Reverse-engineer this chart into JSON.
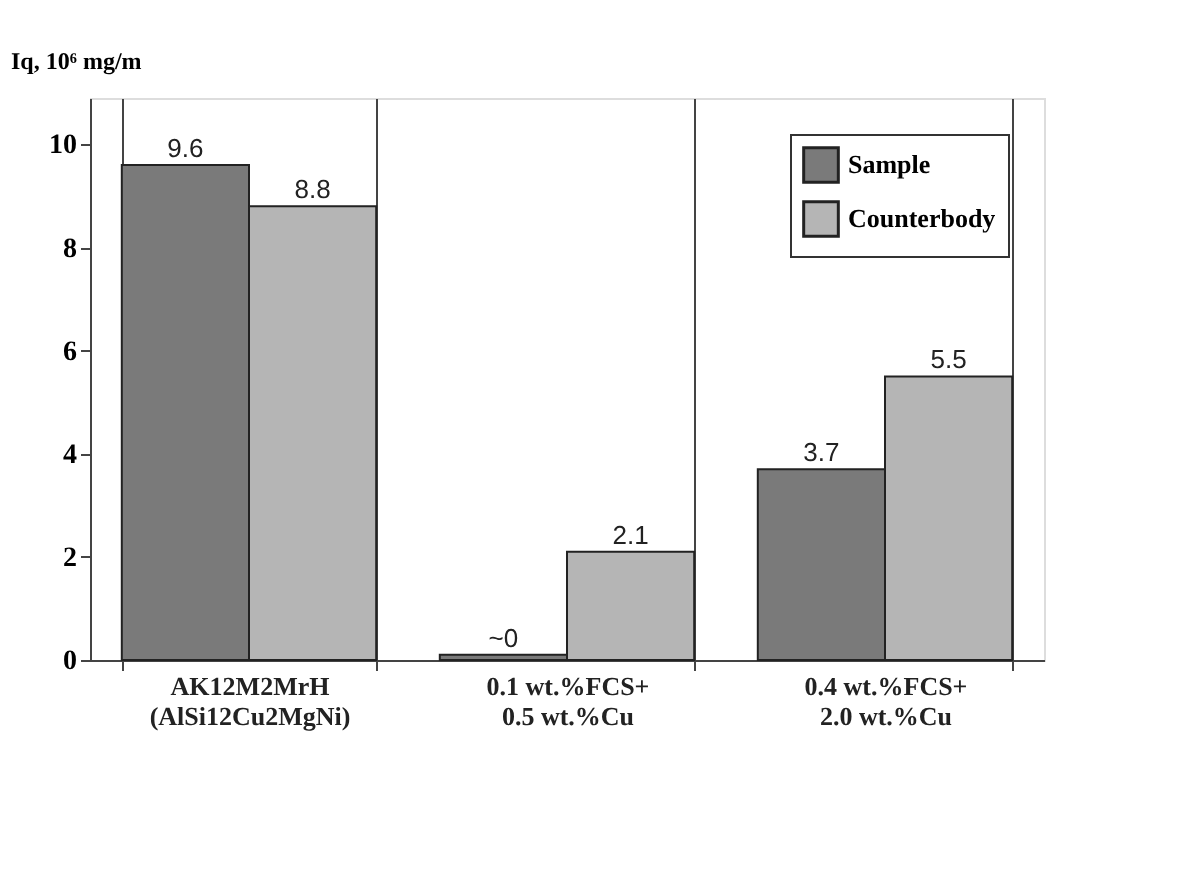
{
  "chart_data": {
    "type": "bar",
    "ylabel": "Iq, 10⁶ mg/m",
    "categories": [
      "AK12M2MrH\n(AlSi12Cu2MgNi)",
      "0.1 wt.%FCS+\n0.5 wt.%Cu",
      "0.4 wt.%FCS+\n2.0 wt.%Cu"
    ],
    "series": [
      {
        "name": "Sample",
        "color": "#7a7a7a",
        "values": [
          9.6,
          0.1,
          3.7
        ],
        "value_labels": [
          "9.6",
          "~0",
          "3.7"
        ]
      },
      {
        "name": "Counterbody",
        "color": "#b5b5b5",
        "values": [
          8.8,
          2.1,
          5.5
        ],
        "value_labels": [
          "8.8",
          "2.1",
          "5.5"
        ]
      }
    ],
    "ylim": [
      0,
      10.9
    ],
    "yticks": [
      0,
      2,
      4,
      6,
      8,
      10
    ],
    "grid": "x",
    "legend": "top right"
  }
}
